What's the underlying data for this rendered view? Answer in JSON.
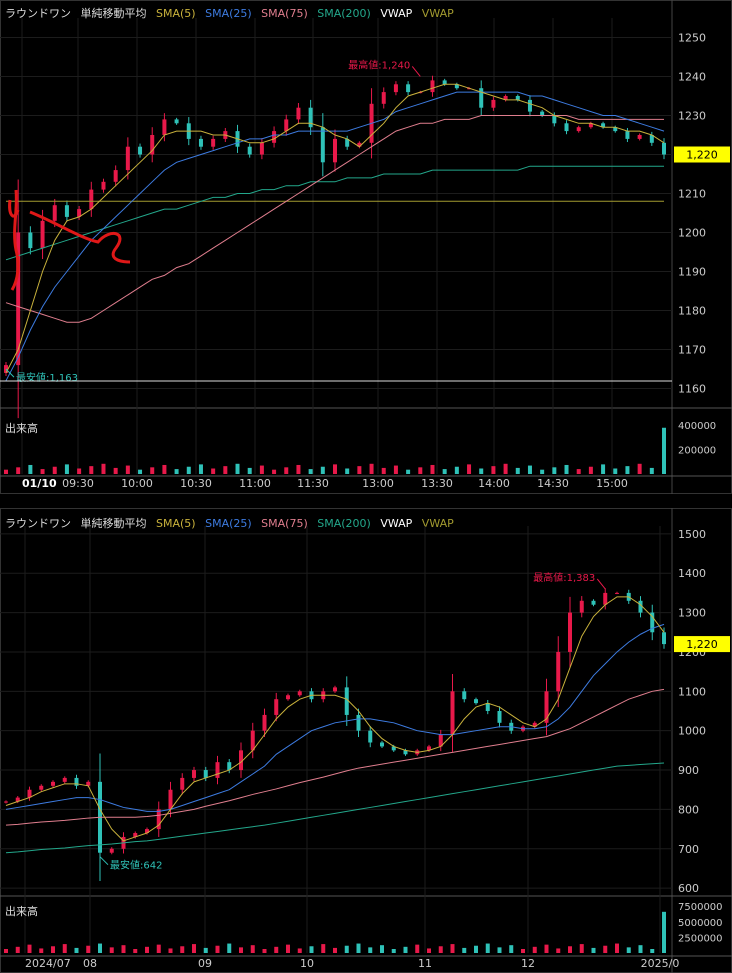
{
  "colors": {
    "up": "#e8194a",
    "down": "#2fc2b8",
    "sma5": "#c9b23c",
    "sma25": "#3d7be0",
    "sma75": "#e07e8e",
    "sma200": "#23a78b",
    "vwap": "#ffffff",
    "vwap2": "#a39b30",
    "price_tag": "#ffff00",
    "grid": "#1c1c1c"
  },
  "legend": {
    "name": "ラウンドワン",
    "indicator": "単純移動平均",
    "sma5": "SMA(5)",
    "sma25": "SMA(25)",
    "sma75": "SMA(75)",
    "sma200": "SMA(200)",
    "vwap": "VWAP",
    "vwap2": "VWAP"
  },
  "volume_label": "出来高",
  "chart_data": [
    {
      "type": "candlestick",
      "title": "intraday",
      "y_ticks": [
        1250,
        1240,
        1230,
        1220,
        1210,
        1200,
        1190,
        1180,
        1170,
        1160
      ],
      "ylim": [
        1155,
        1255
      ],
      "x_ticks": [
        "01/10",
        "09:30",
        "10:00",
        "10:30",
        "11:00",
        "11:30",
        "13:00",
        "13:30",
        "14:00",
        "14:30",
        "15:00"
      ],
      "last_price": "1,220",
      "high_label": "最高値:1,240",
      "low_label": "最安値:1,163",
      "volume_ticks": [
        "400000",
        "200000"
      ],
      "volume_max": 440000,
      "annotation": "1 and 2 hand-drawn marks",
      "close": [
        1166,
        1200,
        1196,
        1203,
        1207,
        1204,
        1206,
        1211,
        1213,
        1216,
        1222,
        1220,
        1225,
        1229,
        1228,
        1224,
        1222,
        1224,
        1226,
        1222,
        1220,
        1223,
        1226,
        1229,
        1232,
        1227,
        1218,
        1224,
        1222,
        1223,
        1233,
        1236,
        1238,
        1236,
        1236,
        1239,
        1238,
        1237,
        1237,
        1232,
        1234,
        1235,
        1234,
        1231,
        1230,
        1228,
        1226,
        1227,
        1228,
        1227,
        1226,
        1224,
        1225,
        1223,
        1220
      ],
      "sma5": [
        1164,
        1170,
        1180,
        1190,
        1198,
        1203,
        1204,
        1206,
        1209,
        1212,
        1215,
        1218,
        1221,
        1225,
        1226,
        1226,
        1226,
        1225,
        1225,
        1224,
        1223,
        1223,
        1224,
        1226,
        1228,
        1228,
        1227,
        1225,
        1224,
        1222,
        1225,
        1228,
        1232,
        1235,
        1236,
        1237,
        1238,
        1238,
        1237,
        1236,
        1235,
        1234,
        1234,
        1233,
        1232,
        1230,
        1229,
        1228,
        1228,
        1227,
        1227,
        1226,
        1226,
        1225,
        1223
      ],
      "sma25": [
        1162,
        1168,
        1175,
        1181,
        1186,
        1190,
        1194,
        1198,
        1201,
        1204,
        1207,
        1210,
        1213,
        1216,
        1218,
        1219,
        1220,
        1221,
        1222,
        1223,
        1224,
        1224,
        1225,
        1225,
        1226,
        1226,
        1226,
        1226,
        1226,
        1227,
        1228,
        1229,
        1231,
        1232,
        1233,
        1234,
        1235,
        1236,
        1236,
        1236,
        1236,
        1236,
        1236,
        1235,
        1235,
        1234,
        1233,
        1232,
        1231,
        1230,
        1230,
        1229,
        1228,
        1227,
        1226
      ],
      "sma75": [
        1182,
        1181,
        1180,
        1179,
        1178,
        1177,
        1177,
        1178,
        1180,
        1182,
        1184,
        1186,
        1188,
        1189,
        1191,
        1192,
        1194,
        1196,
        1198,
        1200,
        1202,
        1204,
        1206,
        1208,
        1210,
        1212,
        1214,
        1216,
        1218,
        1220,
        1222,
        1224,
        1226,
        1227,
        1228,
        1228,
        1229,
        1229,
        1229,
        1230,
        1230,
        1230,
        1230,
        1230,
        1230,
        1230,
        1230,
        1229,
        1229,
        1229,
        1229,
        1229,
        1229,
        1229,
        1229
      ],
      "sma200": [
        1193,
        1194,
        1195,
        1196,
        1197,
        1198,
        1199,
        1200,
        1201,
        1202,
        1203,
        1204,
        1205,
        1206,
        1206,
        1207,
        1208,
        1209,
        1209,
        1210,
        1210,
        1211,
        1211,
        1212,
        1212,
        1213,
        1213,
        1213,
        1214,
        1214,
        1214,
        1215,
        1215,
        1215,
        1215,
        1216,
        1216,
        1216,
        1216,
        1216,
        1216,
        1216,
        1216,
        1217,
        1217,
        1217,
        1217,
        1217,
        1217,
        1217,
        1217,
        1217,
        1217,
        1217,
        1217
      ],
      "vwap": [
        1208,
        1208,
        1208,
        1208,
        1208,
        1208,
        1208,
        1208,
        1208,
        1208,
        1208,
        1208,
        1208,
        1208,
        1208,
        1208,
        1208,
        1208,
        1208,
        1208,
        1208,
        1208,
        1208,
        1208,
        1208,
        1208,
        1208,
        1208,
        1208,
        1208,
        1208,
        1208,
        1208,
        1208,
        1208,
        1208,
        1208,
        1208,
        1208,
        1208,
        1208,
        1208,
        1208,
        1208,
        1208,
        1208,
        1208,
        1208,
        1208,
        1208,
        1208,
        1208,
        1208,
        1208,
        1208
      ]
    },
    {
      "type": "candlestick",
      "title": "daily",
      "y_ticks": [
        1500,
        1400,
        1300,
        1200,
        1100,
        1000,
        900,
        800,
        700,
        600
      ],
      "ylim": [
        580,
        1520
      ],
      "x_ticks": [
        "2024/07",
        "08",
        "09",
        "10",
        "11",
        "12",
        "2025/0"
      ],
      "last_price": "1,220",
      "high_label": "最高値:1,383",
      "low_label": "最安値:642",
      "volume_ticks": [
        "7500000",
        "5000000",
        "2500000"
      ],
      "volume_max": 8000000,
      "close": [
        820,
        830,
        850,
        860,
        870,
        880,
        860,
        870,
        690,
        700,
        730,
        740,
        750,
        800,
        850,
        880,
        900,
        880,
        920,
        900,
        950,
        1000,
        1040,
        1080,
        1090,
        1100,
        1080,
        1100,
        1110,
        1040,
        1000,
        970,
        960,
        950,
        940,
        950,
        960,
        990,
        1100,
        1080,
        1070,
        1050,
        1020,
        1000,
        1010,
        1020,
        1100,
        1200,
        1300,
        1330,
        1320,
        1350,
        1350,
        1330,
        1300,
        1250,
        1220
      ],
      "sma5": [
        810,
        820,
        830,
        845,
        855,
        865,
        865,
        860,
        800,
        750,
        720,
        730,
        740,
        760,
        800,
        840,
        870,
        880,
        890,
        900,
        920,
        950,
        990,
        1030,
        1060,
        1080,
        1090,
        1090,
        1090,
        1080,
        1050,
        1010,
        980,
        960,
        950,
        945,
        950,
        960,
        990,
        1030,
        1060,
        1070,
        1060,
        1040,
        1020,
        1010,
        1030,
        1080,
        1160,
        1240,
        1290,
        1320,
        1340,
        1340,
        1320,
        1290,
        1250
      ],
      "sma25": [
        800,
        805,
        810,
        815,
        820,
        825,
        830,
        830,
        825,
        815,
        805,
        800,
        795,
        795,
        800,
        810,
        820,
        830,
        840,
        850,
        870,
        890,
        910,
        940,
        960,
        980,
        1000,
        1010,
        1020,
        1025,
        1030,
        1030,
        1025,
        1020,
        1010,
        1000,
        995,
        990,
        990,
        995,
        1000,
        1005,
        1010,
        1010,
        1005,
        1005,
        1010,
        1030,
        1060,
        1100,
        1140,
        1170,
        1200,
        1225,
        1245,
        1260,
        1270
      ],
      "sma75": [
        760,
        762,
        765,
        768,
        770,
        772,
        775,
        778,
        780,
        780,
        780,
        780,
        782,
        785,
        790,
        795,
        800,
        808,
        815,
        822,
        830,
        838,
        845,
        852,
        860,
        868,
        875,
        882,
        890,
        898,
        905,
        910,
        915,
        920,
        925,
        930,
        935,
        940,
        945,
        950,
        955,
        960,
        965,
        970,
        975,
        980,
        985,
        995,
        1005,
        1020,
        1035,
        1050,
        1065,
        1080,
        1090,
        1100,
        1105
      ],
      "sma200": [
        690,
        692,
        695,
        698,
        700,
        702,
        705,
        708,
        710,
        712,
        715,
        718,
        720,
        724,
        728,
        732,
        736,
        740,
        744,
        748,
        752,
        756,
        760,
        765,
        770,
        775,
        780,
        785,
        790,
        795,
        800,
        805,
        810,
        815,
        820,
        825,
        830,
        835,
        840,
        845,
        850,
        855,
        860,
        865,
        870,
        875,
        880,
        885,
        890,
        895,
        900,
        905,
        910,
        912,
        914,
        916,
        918
      ]
    }
  ]
}
